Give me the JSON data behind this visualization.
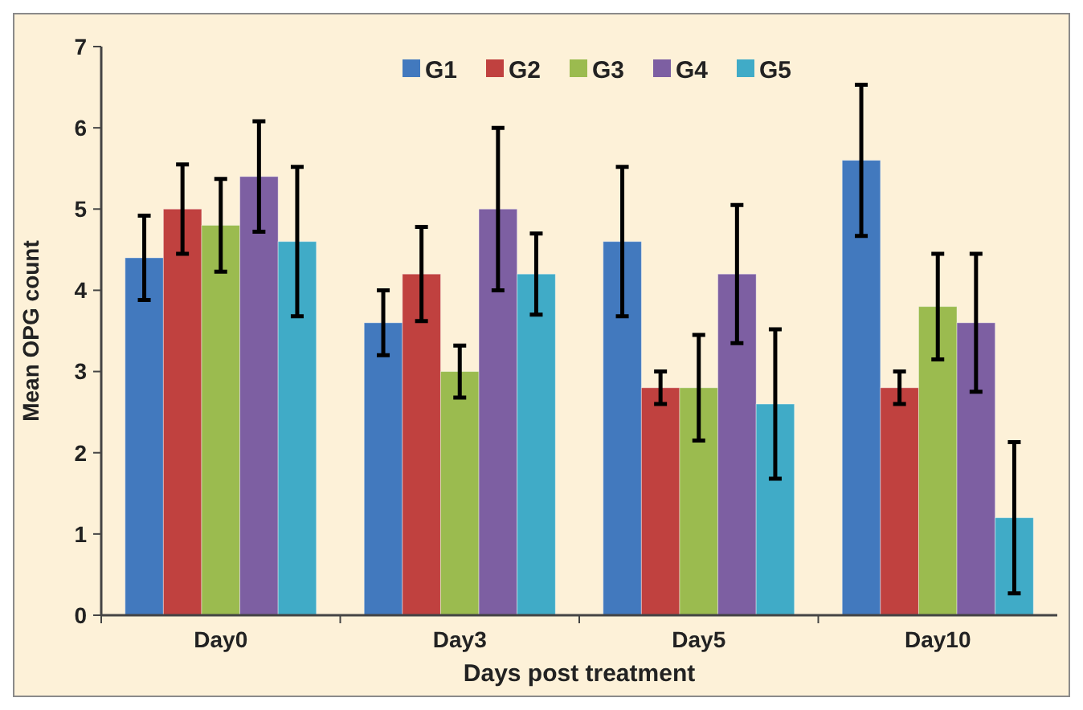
{
  "chart_data": {
    "type": "bar",
    "xlabel": "Days post treatment",
    "ylabel": "Mean OPG count",
    "categories": [
      "Day0",
      "Day3",
      "Day5",
      "Day10"
    ],
    "series": [
      {
        "name": "G1",
        "color": "#4279be",
        "values": [
          4.4,
          3.6,
          4.6,
          5.6
        ],
        "errors": [
          0.52,
          0.4,
          0.92,
          0.93
        ]
      },
      {
        "name": "G2",
        "color": "#c0413f",
        "values": [
          5.0,
          4.2,
          2.8,
          2.8
        ],
        "errors": [
          0.55,
          0.58,
          0.2,
          0.2
        ]
      },
      {
        "name": "G3",
        "color": "#9bbb4f",
        "values": [
          4.8,
          3.0,
          2.8,
          3.8
        ],
        "errors": [
          0.57,
          0.32,
          0.65,
          0.65
        ]
      },
      {
        "name": "G4",
        "color": "#7d5fa2",
        "values": [
          5.4,
          5.0,
          4.2,
          3.6
        ],
        "errors": [
          0.68,
          1.0,
          0.85,
          0.85
        ]
      },
      {
        "name": "G5",
        "color": "#40abc7",
        "values": [
          4.6,
          4.2,
          2.6,
          1.2
        ],
        "errors": [
          0.92,
          0.5,
          0.92,
          0.93
        ]
      }
    ],
    "ylim": [
      0,
      7
    ],
    "yticks": [
      0,
      1,
      2,
      3,
      4,
      5,
      6,
      7
    ],
    "grid": false,
    "legend": "top"
  }
}
